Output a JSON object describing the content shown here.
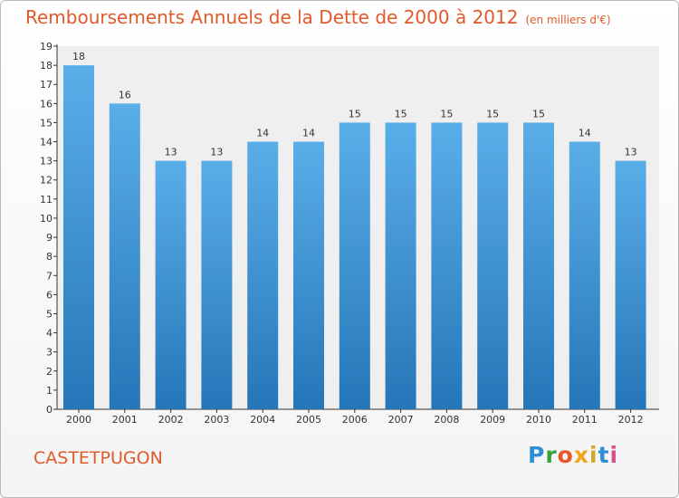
{
  "title": "Remboursements Annuels de la Dette de 2000 à 2012",
  "subtitle": "(en milliers d'€)",
  "town": "CASTETPUGON",
  "logo": {
    "text": "Proxiti",
    "colors": [
      "#2e8fd6",
      "#3aa13a",
      "#e8552a",
      "#f2a516",
      "#d4a62a",
      "#2e8fd6",
      "#d94f8c"
    ]
  },
  "colors": {
    "title": "#e05a2b",
    "bar_top": "#5aaee8",
    "bar_bottom": "#2576b8",
    "axis": "#333333"
  },
  "chart_data": {
    "type": "bar",
    "title": "Remboursements Annuels de la Dette de 2000 à 2012",
    "subtitle": "(en milliers d'€)",
    "categories": [
      "2000",
      "2001",
      "2002",
      "2003",
      "2004",
      "2005",
      "2006",
      "2007",
      "2008",
      "2009",
      "2010",
      "2011",
      "2012"
    ],
    "values": [
      18,
      16,
      13,
      13,
      14,
      14,
      15,
      15,
      15,
      15,
      15,
      14,
      13
    ],
    "ylim": [
      0,
      19
    ],
    "yticks": [
      0,
      1,
      2,
      3,
      4,
      5,
      6,
      7,
      8,
      9,
      10,
      11,
      12,
      13,
      14,
      15,
      16,
      17,
      18,
      19
    ],
    "xlabel": "",
    "ylabel": "",
    "grid": false,
    "legend": "none"
  }
}
